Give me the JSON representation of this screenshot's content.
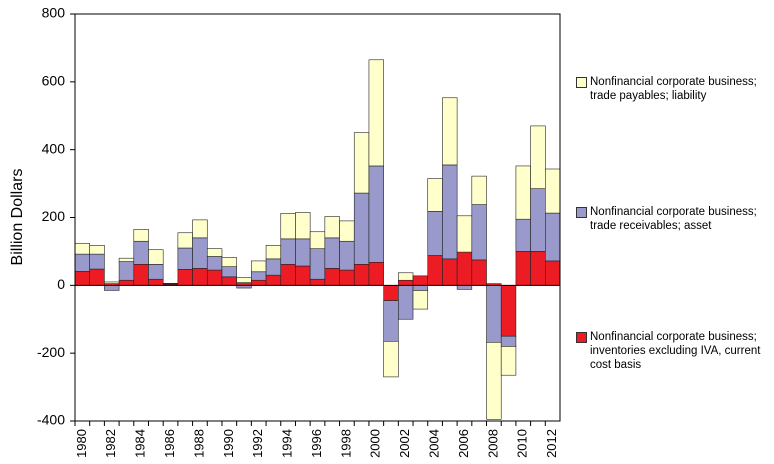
{
  "chart_data": {
    "type": "stacked-bar",
    "y_label": "Billion Dollars",
    "categories": [
      "1980",
      null,
      "1982",
      null,
      "1984",
      null,
      "1986",
      null,
      "1988",
      null,
      "1990",
      null,
      "1992",
      null,
      "1994",
      null,
      "1996",
      null,
      "1998",
      null,
      "2000",
      null,
      "2002",
      null,
      "2004",
      null,
      "2006",
      null,
      "2008",
      null,
      "2010",
      null,
      "2012"
    ],
    "series": [
      {
        "name": "Nonfinancial corporate business; inventories excluding IVA, current cost basis",
        "color": "#ed1c24",
        "values": [
          41,
          48,
          5,
          15,
          62,
          18,
          3,
          47,
          50,
          45,
          25,
          8,
          15,
          30,
          62,
          57,
          18,
          50,
          45,
          62,
          68,
          -45,
          15,
          28,
          88,
          78,
          98,
          75,
          5,
          -150,
          100,
          100,
          72
        ]
      },
      {
        "name": "Nonfinancial corporate business; trade receivables; asset",
        "color": "#9999cc",
        "values": [
          51,
          44,
          -15,
          55,
          68,
          44,
          2,
          63,
          90,
          40,
          30,
          -8,
          25,
          48,
          75,
          80,
          90,
          90,
          85,
          210,
          284,
          -120,
          -100,
          -15,
          130,
          277,
          -12,
          163,
          -168,
          -30,
          95,
          185,
          141
        ]
      },
      {
        "name": "Nonfinancial corporate business; trade payables; liability",
        "color": "#ffffcc",
        "values": [
          32,
          26,
          5,
          10,
          35,
          43,
          1,
          45,
          53,
          23,
          27,
          15,
          32,
          40,
          75,
          78,
          50,
          63,
          60,
          178,
          313,
          -105,
          22,
          -55,
          97,
          198,
          107,
          84,
          -227,
          -85,
          157,
          185,
          130
        ]
      }
    ],
    "ylim": [
      -400,
      800
    ],
    "yticks": [
      -400,
      -200,
      0,
      200,
      400,
      600,
      800
    ]
  }
}
